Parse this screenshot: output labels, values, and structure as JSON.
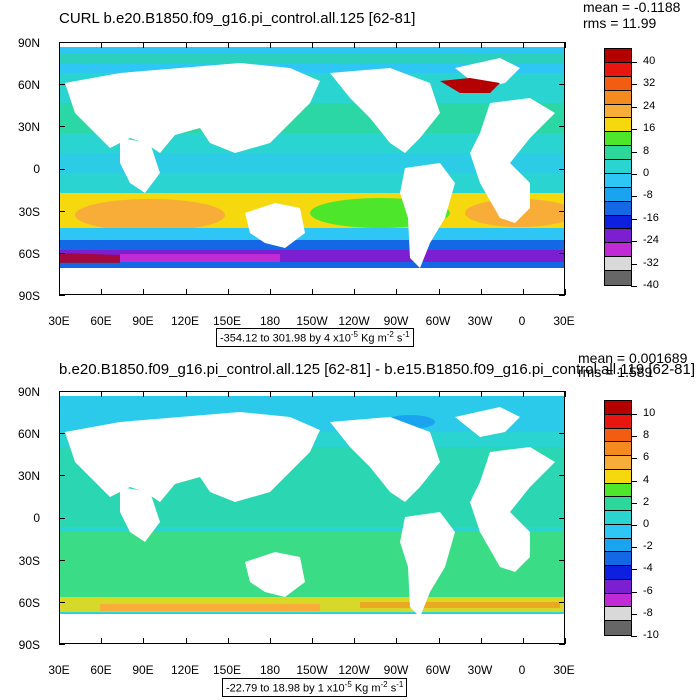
{
  "panels": [
    {
      "title": "CURL b.e20.B1850.f09_g16.pi_control.all.125 [62-81]",
      "mean": "mean = -0.1188",
      "rms": "rms = 11.99",
      "range_text": "-354.12 to 301.98 by 4 x10",
      "range_exp": "-5",
      "range_unit": " Kg m",
      "range_unit_exp": "-2",
      "range_tail": " s",
      "range_tail_exp": "-1",
      "colorbar_labels": [
        "40",
        "32",
        "24",
        "16",
        "8",
        "0",
        "-8",
        "-16",
        "-24",
        "-32",
        "-40"
      ],
      "colorbar_colors": [
        "#b40000",
        "#e8160e",
        "#f35d12",
        "#f58b1e",
        "#f7ad38",
        "#f5d80e",
        "#4ee62a",
        "#2bd79a",
        "#2ad4d0",
        "#2ec6f5",
        "#1aa4ef",
        "#1468e6",
        "#0d20e0",
        "#7c1fd0",
        "#c12bd6",
        "#d9d9d9",
        "#666666"
      ]
    },
    {
      "title": "b.e20.B1850.f09_g16.pi_control.all.125 [62-81] - b.e15.B1850.f09_g16.pi_control.all.119 [62-81]",
      "mean": "mean = 0.001689",
      "rms": "rms = 1.589",
      "range_text": "-22.79 to 18.98 by 1 x10",
      "range_exp": "-5",
      "range_unit": " Kg m",
      "range_unit_exp": "-2",
      "range_tail": " s",
      "range_tail_exp": "-1",
      "colorbar_labels": [
        "10",
        "8",
        "6",
        "4",
        "2",
        "0",
        "-2",
        "-4",
        "-6",
        "-8",
        "-10"
      ],
      "colorbar_colors": [
        "#b40000",
        "#e8160e",
        "#f35d12",
        "#f58b1e",
        "#f7ad38",
        "#f5d80e",
        "#4ee62a",
        "#2bd79a",
        "#2ad4d0",
        "#2ec6f5",
        "#1aa4ef",
        "#1468e6",
        "#0d20e0",
        "#7c1fd0",
        "#c12bd6",
        "#d9d9d9",
        "#666666"
      ]
    }
  ],
  "lat_labels": [
    "90N",
    "60N",
    "30N",
    "0",
    "30S",
    "60S",
    "90S"
  ],
  "lon_labels": [
    "30E",
    "60E",
    "90E",
    "120E",
    "150E",
    "180",
    "150W",
    "120W",
    "90W",
    "60W",
    "30W",
    "0",
    "30E"
  ]
}
